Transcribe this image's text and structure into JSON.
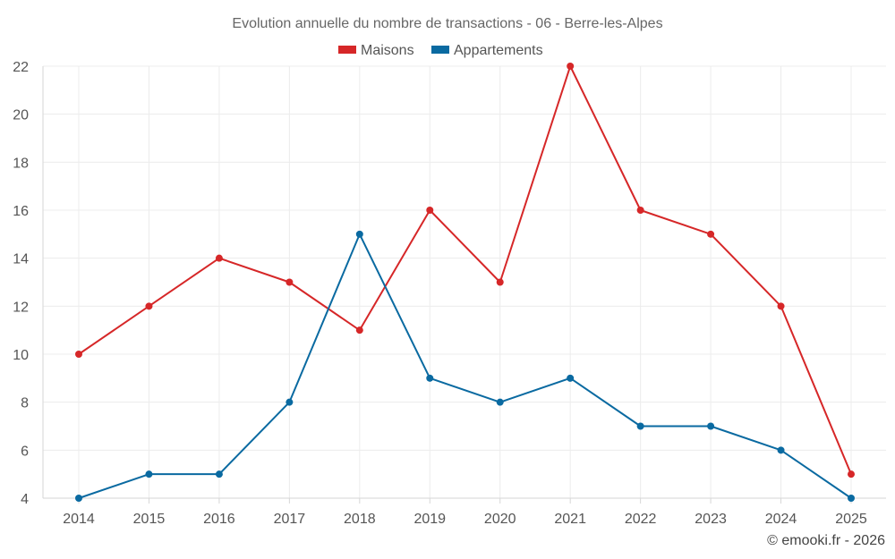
{
  "chart_data": {
    "type": "line",
    "title": "Evolution annuelle du nombre de transactions - 06 - Berre-les-Alpes",
    "xlabel": "",
    "ylabel": "",
    "categories": [
      "2014",
      "2015",
      "2016",
      "2017",
      "2018",
      "2019",
      "2020",
      "2021",
      "2022",
      "2023",
      "2024",
      "2025"
    ],
    "ylim": [
      4,
      22
    ],
    "yticks": [
      4,
      6,
      8,
      10,
      12,
      14,
      16,
      18,
      20,
      22
    ],
    "grid": true,
    "legend_position": "top-center",
    "series": [
      {
        "name": "Maisons",
        "color": "#d62728",
        "values": [
          10,
          12,
          14,
          13,
          11,
          16,
          13,
          22,
          16,
          15,
          12,
          5
        ]
      },
      {
        "name": "Appartements",
        "color": "#0a6aa1",
        "values": [
          4,
          5,
          5,
          8,
          15,
          9,
          8,
          9,
          7,
          7,
          6,
          4
        ]
      }
    ]
  },
  "credit": "© emooki.fr - 2026"
}
